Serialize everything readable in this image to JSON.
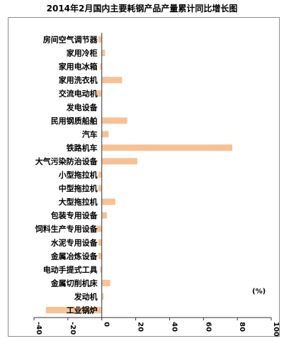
{
  "chart_data": {
    "type": "bar",
    "orientation": "horizontal",
    "title": "2014年2月国内主要耗钢产品产量累计同比增长图",
    "unit": "(%)",
    "xlim": [
      -40,
      100
    ],
    "xticks": [
      "-40",
      "-20",
      "0",
      "20",
      "40",
      "60",
      "80",
      "100"
    ],
    "grid": false,
    "bar_color": "#f5c298",
    "categories": [
      "房间空气调节器",
      "家用冷柜",
      "家用电冰箱",
      "家用洗衣机",
      "交流电动机",
      "发电设备",
      "民用钢质船舶",
      "汽车",
      "铁路机车",
      "大气污染防治设备",
      "小型拖拉机",
      "中型拖拉机",
      "大型拖拉机",
      "包装专用设备",
      "饲料生产专用设备",
      "水泥专用设备",
      "金属冶炼设备",
      "电动手提式工具",
      "金属切削机床",
      "发动机",
      "工业锅炉"
    ],
    "values": [
      -2,
      2,
      -1,
      12,
      -3,
      0,
      15,
      4,
      77,
      21,
      -2,
      -2,
      8,
      3,
      -3,
      -2,
      -2,
      -1,
      5,
      1,
      -33
    ]
  }
}
